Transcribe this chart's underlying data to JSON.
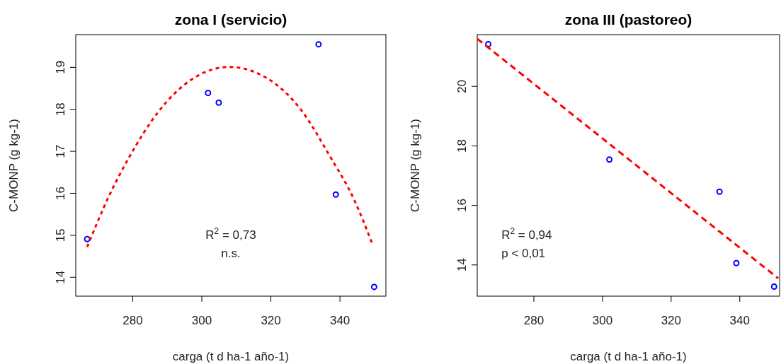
{
  "chart_data": [
    {
      "type": "scatter",
      "title": "zona I (servicio)",
      "xlabel": "carga (t d ha-1 año-1)",
      "ylabel": "C-MONP (g kg-1)",
      "xlim": [
        263.5,
        353.3
      ],
      "ylim": [
        13.55,
        19.78
      ],
      "xticks": [
        280,
        300,
        320,
        340
      ],
      "yticks": [
        14,
        15,
        16,
        17,
        18,
        19
      ],
      "grid": false,
      "annotations": [
        "R$^{2}$ = 0,73",
        "n.s."
      ],
      "series": [
        {
          "marker": "circle",
          "color": "#0000ff",
          "x": [
            266.8,
            301.8,
            304.9,
            333.8,
            338.8,
            349.9
          ],
          "values": [
            14.91,
            18.39,
            18.16,
            19.55,
            15.97,
            13.77
          ]
        },
        {
          "type": "line",
          "marker": "none",
          "color": "#ff0000",
          "line_style": "dotted",
          "x": [
            266.8,
            273.2,
            278.9,
            287.3,
            297.2,
            307.9,
            318.5,
            328.8,
            336.9,
            344.2,
            349.3
          ],
          "values": [
            14.72,
            15.95,
            16.85,
            17.93,
            18.72,
            19.01,
            18.76,
            17.98,
            16.91,
            15.83,
            14.81
          ]
        }
      ]
    },
    {
      "type": "scatter",
      "title": "zona III (pastoreo)",
      "xlabel": "carga (t d ha-1 año-1)",
      "ylabel": "C-MONP (g kg-1)",
      "xlim": [
        263.5,
        351.6
      ],
      "ylim": [
        12.95,
        21.74
      ],
      "xticks": [
        280,
        300,
        320,
        340
      ],
      "yticks": [
        14,
        16,
        18,
        20
      ],
      "grid": false,
      "annotations": [
        "R$^{2}$ = 0,94",
        "p < 0,01"
      ],
      "series": [
        {
          "marker": "circle",
          "color": "#0000ff",
          "x": [
            266.7,
            302.0,
            334.1,
            339.0,
            350.0
          ],
          "values": [
            21.42,
            17.54,
            16.46,
            14.06,
            13.27
          ]
        },
        {
          "type": "line",
          "marker": "none",
          "color": "#ff0000",
          "line_style": "dashed",
          "x": [
            263.5,
            351.2
          ],
          "values": [
            21.6,
            13.55
          ]
        }
      ]
    }
  ]
}
